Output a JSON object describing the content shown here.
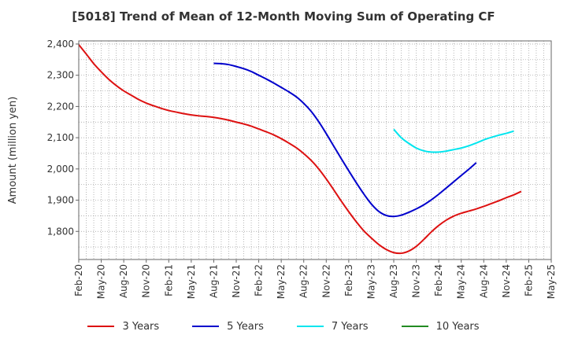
{
  "chart_data": {
    "type": "line",
    "title": "[5018]  Trend of Mean of 12-Month Moving Sum of Operating CF",
    "xlabel": "",
    "ylabel": "Amount (million yen)",
    "ylim": [
      1710,
      2410
    ],
    "yticks": [
      1800,
      1900,
      2000,
      2100,
      2200,
      2300,
      2400
    ],
    "ytick_labels": [
      "1,800",
      "1,900",
      "2,000",
      "2,100",
      "2,200",
      "2,300",
      "2,400"
    ],
    "x_start": "Feb-20",
    "x_end": "May-25",
    "xtick_labels": [
      "Feb-20",
      "May-20",
      "Aug-20",
      "Nov-20",
      "Feb-21",
      "May-21",
      "Aug-21",
      "Nov-21",
      "Feb-22",
      "May-22",
      "Aug-22",
      "Nov-22",
      "Feb-23",
      "May-23",
      "Aug-23",
      "Nov-23",
      "Feb-24",
      "May-24",
      "Aug-24",
      "Nov-24",
      "Feb-25",
      "May-25"
    ],
    "grid": true,
    "legend_position": "bottom",
    "series": [
      {
        "name": "3 Years",
        "color": "#dd1111",
        "start_month_index": 0,
        "values": [
          2398,
          2368,
          2337,
          2311,
          2287,
          2267,
          2250,
          2236,
          2222,
          2211,
          2202,
          2194,
          2187,
          2182,
          2177,
          2173,
          2170,
          2168,
          2165,
          2161,
          2156,
          2150,
          2144,
          2137,
          2128,
          2119,
          2109,
          2097,
          2083,
          2068,
          2049,
          2027,
          2000,
          1968,
          1933,
          1897,
          1863,
          1831,
          1802,
          1779,
          1758,
          1742,
          1732,
          1730,
          1737,
          1752,
          1774,
          1798,
          1819,
          1836,
          1849,
          1858,
          1865,
          1872,
          1880,
          1889,
          1898,
          1908,
          1917,
          1928
        ]
      },
      {
        "name": "5 Years",
        "color": "#0000cc",
        "start_month_index": 18,
        "values": [
          2338,
          2337,
          2334,
          2328,
          2321,
          2312,
          2300,
          2288,
          2275,
          2261,
          2247,
          2231,
          2210,
          2184,
          2151,
          2113,
          2073,
          2033,
          1994,
          1956,
          1920,
          1888,
          1864,
          1851,
          1848,
          1852,
          1861,
          1872,
          1885,
          1901,
          1919,
          1939,
          1959,
          1979,
          1999,
          2020
        ]
      },
      {
        "name": "7 Years",
        "color": "#00e5ee",
        "start_month_index": 42,
        "values": [
          2127,
          2100,
          2082,
          2067,
          2058,
          2054,
          2054,
          2057,
          2062,
          2067,
          2074,
          2083,
          2093,
          2101,
          2108,
          2114,
          2121
        ]
      },
      {
        "name": "10 Years",
        "color": "#228b22",
        "start_month_index": 0,
        "values": []
      }
    ]
  }
}
